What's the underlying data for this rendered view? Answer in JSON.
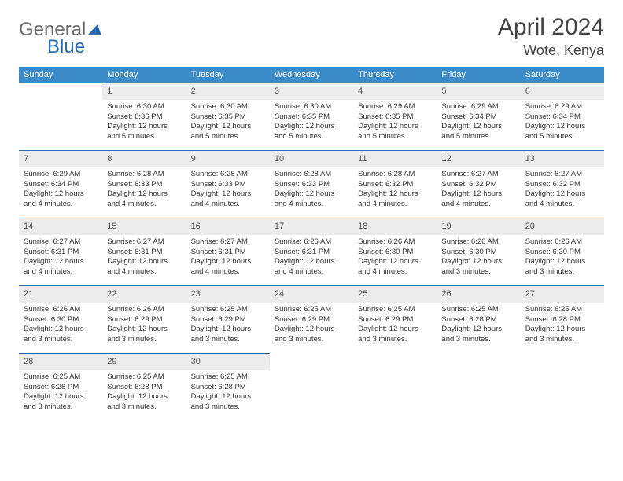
{
  "logo": {
    "general": "General",
    "blue": "Blue"
  },
  "title": "April 2024",
  "location": "Wote, Kenya",
  "colors": {
    "header_bg": "#3b8bc9",
    "header_text": "#ffffff",
    "daynum_bg": "#ececec",
    "rule": "#2a6bb0",
    "logo_gray": "#6b6b6b",
    "logo_blue": "#2a6bb0"
  },
  "weekdays": [
    "Sunday",
    "Monday",
    "Tuesday",
    "Wednesday",
    "Thursday",
    "Friday",
    "Saturday"
  ],
  "weeks": [
    [
      null,
      {
        "day": "1",
        "sunrise": "Sunrise: 6:30 AM",
        "sunset": "Sunset: 6:36 PM",
        "daylight": "Daylight: 12 hours and 5 minutes."
      },
      {
        "day": "2",
        "sunrise": "Sunrise: 6:30 AM",
        "sunset": "Sunset: 6:35 PM",
        "daylight": "Daylight: 12 hours and 5 minutes."
      },
      {
        "day": "3",
        "sunrise": "Sunrise: 6:30 AM",
        "sunset": "Sunset: 6:35 PM",
        "daylight": "Daylight: 12 hours and 5 minutes."
      },
      {
        "day": "4",
        "sunrise": "Sunrise: 6:29 AM",
        "sunset": "Sunset: 6:35 PM",
        "daylight": "Daylight: 12 hours and 5 minutes."
      },
      {
        "day": "5",
        "sunrise": "Sunrise: 6:29 AM",
        "sunset": "Sunset: 6:34 PM",
        "daylight": "Daylight: 12 hours and 5 minutes."
      },
      {
        "day": "6",
        "sunrise": "Sunrise: 6:29 AM",
        "sunset": "Sunset: 6:34 PM",
        "daylight": "Daylight: 12 hours and 5 minutes."
      }
    ],
    [
      {
        "day": "7",
        "sunrise": "Sunrise: 6:29 AM",
        "sunset": "Sunset: 6:34 PM",
        "daylight": "Daylight: 12 hours and 4 minutes."
      },
      {
        "day": "8",
        "sunrise": "Sunrise: 6:28 AM",
        "sunset": "Sunset: 6:33 PM",
        "daylight": "Daylight: 12 hours and 4 minutes."
      },
      {
        "day": "9",
        "sunrise": "Sunrise: 6:28 AM",
        "sunset": "Sunset: 6:33 PM",
        "daylight": "Daylight: 12 hours and 4 minutes."
      },
      {
        "day": "10",
        "sunrise": "Sunrise: 6:28 AM",
        "sunset": "Sunset: 6:33 PM",
        "daylight": "Daylight: 12 hours and 4 minutes."
      },
      {
        "day": "11",
        "sunrise": "Sunrise: 6:28 AM",
        "sunset": "Sunset: 6:32 PM",
        "daylight": "Daylight: 12 hours and 4 minutes."
      },
      {
        "day": "12",
        "sunrise": "Sunrise: 6:27 AM",
        "sunset": "Sunset: 6:32 PM",
        "daylight": "Daylight: 12 hours and 4 minutes."
      },
      {
        "day": "13",
        "sunrise": "Sunrise: 6:27 AM",
        "sunset": "Sunset: 6:32 PM",
        "daylight": "Daylight: 12 hours and 4 minutes."
      }
    ],
    [
      {
        "day": "14",
        "sunrise": "Sunrise: 6:27 AM",
        "sunset": "Sunset: 6:31 PM",
        "daylight": "Daylight: 12 hours and 4 minutes."
      },
      {
        "day": "15",
        "sunrise": "Sunrise: 6:27 AM",
        "sunset": "Sunset: 6:31 PM",
        "daylight": "Daylight: 12 hours and 4 minutes."
      },
      {
        "day": "16",
        "sunrise": "Sunrise: 6:27 AM",
        "sunset": "Sunset: 6:31 PM",
        "daylight": "Daylight: 12 hours and 4 minutes."
      },
      {
        "day": "17",
        "sunrise": "Sunrise: 6:26 AM",
        "sunset": "Sunset: 6:31 PM",
        "daylight": "Daylight: 12 hours and 4 minutes."
      },
      {
        "day": "18",
        "sunrise": "Sunrise: 6:26 AM",
        "sunset": "Sunset: 6:30 PM",
        "daylight": "Daylight: 12 hours and 4 minutes."
      },
      {
        "day": "19",
        "sunrise": "Sunrise: 6:26 AM",
        "sunset": "Sunset: 6:30 PM",
        "daylight": "Daylight: 12 hours and 3 minutes."
      },
      {
        "day": "20",
        "sunrise": "Sunrise: 6:26 AM",
        "sunset": "Sunset: 6:30 PM",
        "daylight": "Daylight: 12 hours and 3 minutes."
      }
    ],
    [
      {
        "day": "21",
        "sunrise": "Sunrise: 6:26 AM",
        "sunset": "Sunset: 6:30 PM",
        "daylight": "Daylight: 12 hours and 3 minutes."
      },
      {
        "day": "22",
        "sunrise": "Sunrise: 6:26 AM",
        "sunset": "Sunset: 6:29 PM",
        "daylight": "Daylight: 12 hours and 3 minutes."
      },
      {
        "day": "23",
        "sunrise": "Sunrise: 6:25 AM",
        "sunset": "Sunset: 6:29 PM",
        "daylight": "Daylight: 12 hours and 3 minutes."
      },
      {
        "day": "24",
        "sunrise": "Sunrise: 6:25 AM",
        "sunset": "Sunset: 6:29 PM",
        "daylight": "Daylight: 12 hours and 3 minutes."
      },
      {
        "day": "25",
        "sunrise": "Sunrise: 6:25 AM",
        "sunset": "Sunset: 6:29 PM",
        "daylight": "Daylight: 12 hours and 3 minutes."
      },
      {
        "day": "26",
        "sunrise": "Sunrise: 6:25 AM",
        "sunset": "Sunset: 6:28 PM",
        "daylight": "Daylight: 12 hours and 3 minutes."
      },
      {
        "day": "27",
        "sunrise": "Sunrise: 6:25 AM",
        "sunset": "Sunset: 6:28 PM",
        "daylight": "Daylight: 12 hours and 3 minutes."
      }
    ],
    [
      {
        "day": "28",
        "sunrise": "Sunrise: 6:25 AM",
        "sunset": "Sunset: 6:28 PM",
        "daylight": "Daylight: 12 hours and 3 minutes."
      },
      {
        "day": "29",
        "sunrise": "Sunrise: 6:25 AM",
        "sunset": "Sunset: 6:28 PM",
        "daylight": "Daylight: 12 hours and 3 minutes."
      },
      {
        "day": "30",
        "sunrise": "Sunrise: 6:25 AM",
        "sunset": "Sunset: 6:28 PM",
        "daylight": "Daylight: 12 hours and 3 minutes."
      },
      null,
      null,
      null,
      null
    ]
  ]
}
